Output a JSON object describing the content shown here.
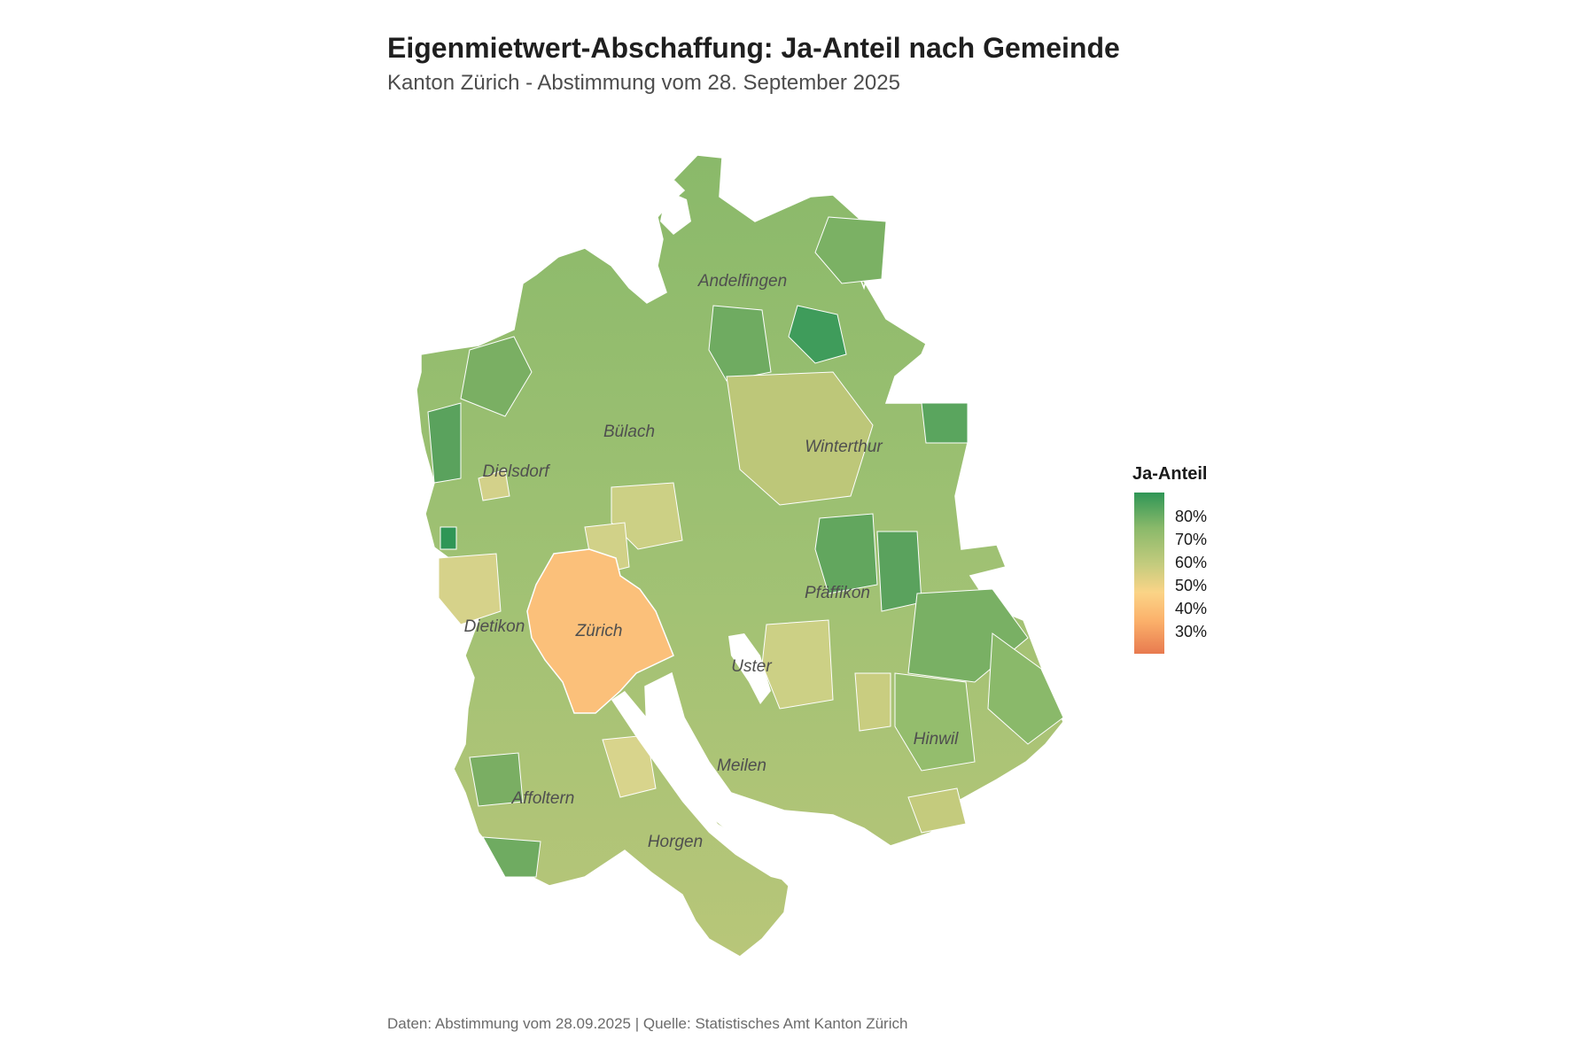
{
  "title": "Eigenmietwert-Abschaffung: Ja-Anteil nach Gemeinde",
  "subtitle": "Kanton Zürich - Abstimmung vom 28. September 2025",
  "caption": "Daten: Abstimmung vom 28.09.2025 | Quelle: Statistisches Amt Kanton Zürich",
  "legend": {
    "title": "Ja-Anteil",
    "ticks": [
      "80%",
      "70%",
      "60%",
      "50%",
      "40%",
      "30%"
    ]
  },
  "districts": [
    {
      "key": "andelfingen",
      "name": "Andelfingen"
    },
    {
      "key": "buelach",
      "name": "Bülach"
    },
    {
      "key": "winterthur",
      "name": "Winterthur"
    },
    {
      "key": "dielsdorf",
      "name": "Dielsdorf"
    },
    {
      "key": "pfaeffikon",
      "name": "Pfäffikon"
    },
    {
      "key": "dietikon",
      "name": "Dietikon"
    },
    {
      "key": "zuerich",
      "name": "Zürich"
    },
    {
      "key": "uster",
      "name": "Uster"
    },
    {
      "key": "hinwil",
      "name": "Hinwil"
    },
    {
      "key": "meilen",
      "name": "Meilen"
    },
    {
      "key": "affoltern",
      "name": "Affoltern"
    },
    {
      "key": "horgen",
      "name": "Horgen"
    }
  ],
  "map_data": [
    {
      "name": "Zürich",
      "ja_anteil": "~46%"
    }
  ],
  "colors": {
    "high": "#2f9656",
    "mid_high": "#8ab96a",
    "mid": "#c5cc7e",
    "low_mid": "#fbc07a",
    "low": "#e87a4f",
    "border": "#ffffff",
    "water": "#ffffff"
  }
}
